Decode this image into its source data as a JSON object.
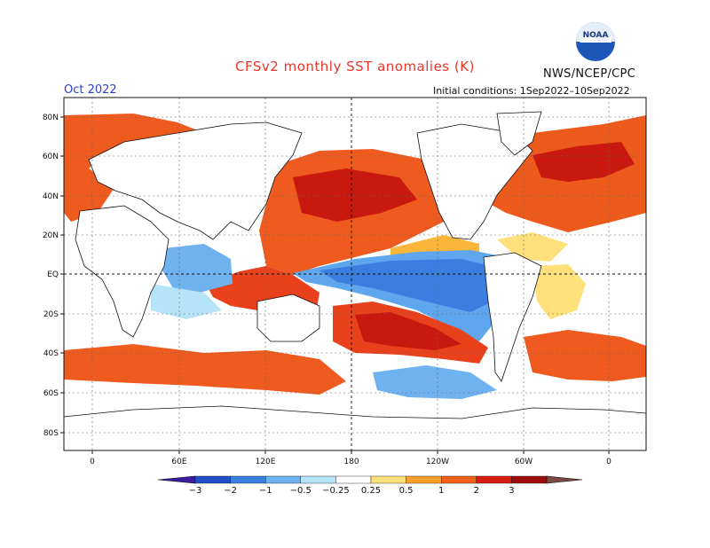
{
  "title": "CFSv2 monthly SST anomalies (K)",
  "agency": "NWS/NCEP/CPC",
  "logo_text": "NOAA",
  "period": "Oct 2022",
  "initial_conditions": "Initial conditions: 1Sep2022–10Sep2022",
  "map": {
    "lat_labels": [
      "80N",
      "60N",
      "40N",
      "20N",
      "EQ",
      "20S",
      "40S",
      "60S",
      "80S"
    ],
    "lon_labels": [
      "0",
      "60E",
      "120E",
      "180",
      "120W",
      "60W",
      "0"
    ]
  },
  "colorbar": {
    "labels": [
      "−3",
      "−2",
      "−1",
      "−0.5",
      "−0.25",
      "0.25",
      "0.5",
      "1",
      "2",
      "3"
    ],
    "colors": [
      "#3a1d9e",
      "#1f4fc8",
      "#3a7fe0",
      "#6fb2f0",
      "#b5e3f7",
      "#ffffff",
      "#ffe07a",
      "#fb9f2f",
      "#f2621b",
      "#d81c0f",
      "#9e0d0d",
      "#7a4a43"
    ]
  }
}
